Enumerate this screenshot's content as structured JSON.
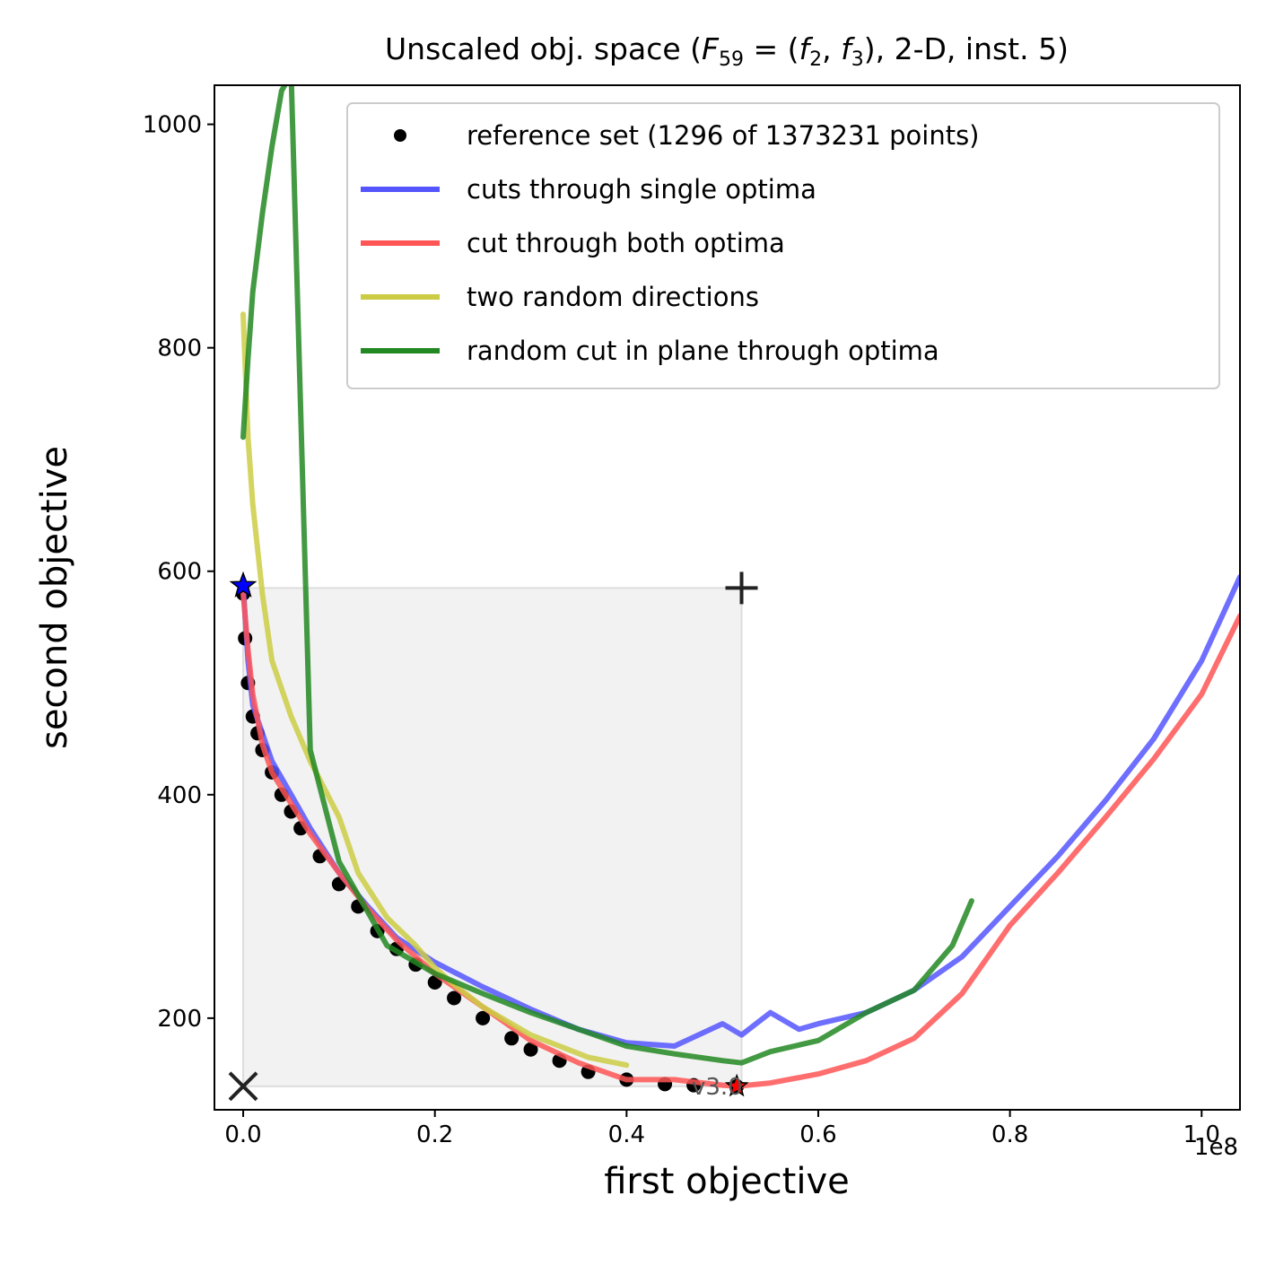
{
  "chart_data": {
    "type": "line",
    "title": "Unscaled obj. space (F59 = (f2, f3), 2-D, inst. 5)",
    "title_parts": {
      "prefix": "Unscaled obj. space (",
      "F": "F",
      "F_sub": "59",
      "eq": " = (",
      "f1": "f",
      "f1_sub": "2",
      "comma": ", ",
      "f2": "f",
      "f2_sub": "3",
      "suffix": "), 2-D, inst. 5)"
    },
    "xlabel": "first objective",
    "ylabel": "second objective",
    "x_offset_label": "1e8",
    "xlim": [
      -0.03,
      1.04
    ],
    "ylim": [
      118,
      1035
    ],
    "x_scale_note": "x values in units of 1e8",
    "xticks": [
      0.0,
      0.2,
      0.4,
      0.6,
      0.8,
      1.0
    ],
    "xtick_labels": [
      "0.0",
      "0.2",
      "0.4",
      "0.6",
      "0.8",
      "1.0"
    ],
    "yticks": [
      200,
      400,
      600,
      800,
      1000
    ],
    "ytick_labels": [
      "200",
      "400",
      "600",
      "800",
      "1000"
    ],
    "grid": false,
    "legend_position": "top-right",
    "legend": [
      {
        "label": "reference set (1296 of 1373231 points)",
        "marker": "dot",
        "color": "#000000"
      },
      {
        "label": "cuts through single optima",
        "marker": "line",
        "color": "#5555ff"
      },
      {
        "label": "cut through both optima",
        "marker": "line",
        "color": "#ff5555"
      },
      {
        "label": "two random directions",
        "marker": "line",
        "color": "#cccc44"
      },
      {
        "label": "random cut in plane through optima",
        "marker": "line",
        "color": "#228822"
      }
    ],
    "dominated_region": {
      "x": [
        0.0,
        0.52
      ],
      "y": [
        139,
        585
      ],
      "color": "#f2f2f2"
    },
    "ideal_point": {
      "x": 0.0,
      "y": 139,
      "marker": "x"
    },
    "nadir_point": {
      "x": 0.52,
      "y": 585,
      "marker": "+"
    },
    "optimum_1": {
      "x": 0.0,
      "y": 587,
      "marker": "star",
      "color": "#0000ff"
    },
    "optimum_2": {
      "x": 0.515,
      "y": 139,
      "marker": "star",
      "color": "#ff0000"
    },
    "annotation": "v3.0",
    "series": [
      {
        "name": "reference set (1296 of 1373231 points)",
        "kind": "points",
        "color": "#000000",
        "x": [
          0.0,
          0.002,
          0.005,
          0.01,
          0.015,
          0.02,
          0.03,
          0.04,
          0.05,
          0.06,
          0.08,
          0.1,
          0.12,
          0.14,
          0.16,
          0.18,
          0.2,
          0.22,
          0.25,
          0.28,
          0.3,
          0.33,
          0.36,
          0.4,
          0.44,
          0.47,
          0.515
        ],
        "y": [
          580,
          540,
          500,
          470,
          455,
          440,
          420,
          400,
          385,
          370,
          345,
          320,
          300,
          278,
          262,
          248,
          232,
          218,
          200,
          182,
          172,
          162,
          152,
          145,
          141,
          140,
          139
        ]
      },
      {
        "name": "cuts through single optima",
        "color": "#5555ff",
        "x": [
          0.0,
          0.005,
          0.01,
          0.02,
          0.03,
          0.05,
          0.07,
          0.1,
          0.13,
          0.16,
          0.2,
          0.25,
          0.3,
          0.35,
          0.4,
          0.45,
          0.5,
          0.52,
          0.55,
          0.58,
          0.6,
          0.65,
          0.7,
          0.75,
          0.8,
          0.85,
          0.9,
          0.95,
          1.0,
          1.04
        ],
        "y": [
          587,
          520,
          480,
          455,
          430,
          400,
          370,
          330,
          300,
          272,
          250,
          228,
          208,
          190,
          178,
          175,
          195,
          185,
          205,
          190,
          195,
          205,
          225,
          255,
          300,
          345,
          395,
          450,
          520,
          595
        ]
      },
      {
        "name": "cut through both optima",
        "color": "#ff5555",
        "x": [
          0.0,
          0.005,
          0.01,
          0.02,
          0.03,
          0.05,
          0.07,
          0.1,
          0.13,
          0.16,
          0.2,
          0.25,
          0.3,
          0.35,
          0.4,
          0.45,
          0.5,
          0.515,
          0.55,
          0.6,
          0.65,
          0.7,
          0.75,
          0.8,
          0.85,
          0.9,
          0.95,
          1.0,
          1.04
        ],
        "y": [
          580,
          530,
          490,
          445,
          420,
          392,
          365,
          330,
          298,
          270,
          240,
          210,
          180,
          160,
          145,
          145,
          140,
          139,
          142,
          150,
          162,
          182,
          222,
          283,
          330,
          380,
          432,
          490,
          560
        ]
      },
      {
        "name": "two random directions",
        "color": "#cccc44",
        "x": [
          0.0,
          0.005,
          0.01,
          0.015,
          0.02,
          0.03,
          0.05,
          0.07,
          0.1,
          0.12,
          0.15,
          0.18,
          0.2,
          0.22,
          0.25,
          0.28,
          0.3,
          0.33,
          0.36,
          0.4
        ],
        "y": [
          830,
          720,
          660,
          620,
          580,
          520,
          470,
          430,
          380,
          330,
          290,
          265,
          245,
          230,
          210,
          195,
          185,
          175,
          165,
          158
        ]
      },
      {
        "name": "random cut in plane through optima",
        "color": "#228822",
        "x": [
          0.0,
          0.005,
          0.01,
          0.02,
          0.03,
          0.04,
          0.05,
          0.07,
          0.1,
          0.15,
          0.2,
          0.25,
          0.3,
          0.35,
          0.4,
          0.45,
          0.5,
          0.52,
          0.55,
          0.6,
          0.65,
          0.7,
          0.74,
          0.76
        ],
        "y": [
          720,
          790,
          850,
          920,
          980,
          1030,
          1045,
          440,
          340,
          265,
          240,
          222,
          205,
          190,
          175,
          168,
          162,
          160,
          170,
          180,
          205,
          225,
          265,
          305
        ]
      }
    ]
  }
}
